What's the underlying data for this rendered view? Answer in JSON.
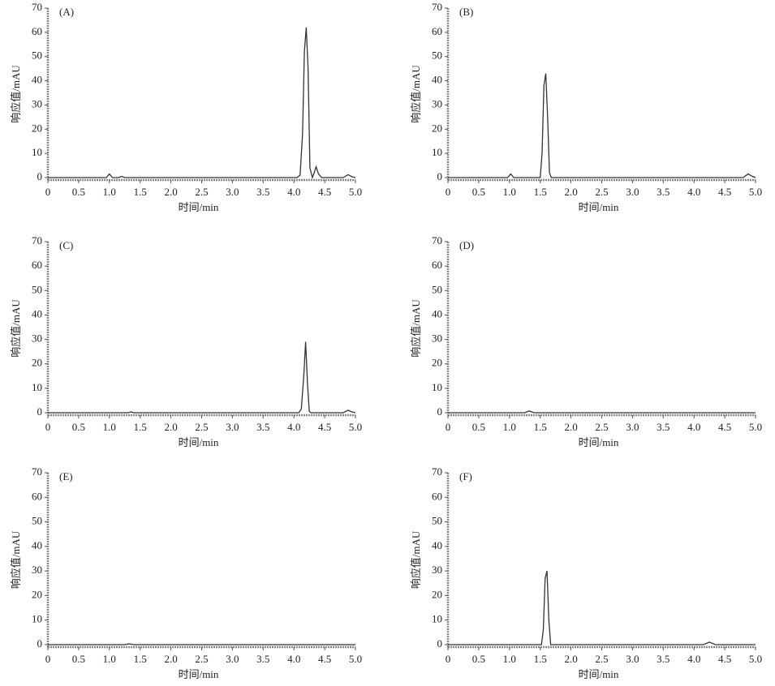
{
  "chart_data": [
    {
      "type": "line",
      "annotation": "(A)",
      "xlabel": "时间/min",
      "ylabel": "响应值/mAU",
      "x": [
        0,
        0.95,
        1.0,
        1.05,
        1.15,
        1.2,
        1.25,
        4.05,
        4.1,
        4.14,
        4.17,
        4.2,
        4.23,
        4.26,
        4.3,
        4.33,
        4.36,
        4.4,
        4.45,
        4.8,
        4.88,
        4.95,
        5.0
      ],
      "series": [
        {
          "color": "#333333",
          "values": [
            0,
            0,
            1.5,
            0,
            0,
            0.5,
            0,
            0,
            1,
            18,
            52,
            62,
            45,
            4,
            0,
            2,
            4.5,
            1.5,
            0,
            0,
            1.2,
            0.3,
            0
          ]
        }
      ],
      "xlim": [
        0,
        5
      ],
      "ylim": [
        -1,
        70
      ],
      "xticks": [
        0,
        0.5,
        {
          "value": 1,
          "label": "1.0"
        },
        1.5,
        {
          "value": 2,
          "label": "2.0"
        },
        2.5,
        {
          "value": 3,
          "label": "3.0"
        },
        3.5,
        {
          "value": 4,
          "label": "4.0"
        },
        4.5,
        {
          "value": 5,
          "label": "5.0"
        }
      ],
      "yticks": [
        0,
        10,
        20,
        30,
        40,
        50,
        60,
        70
      ]
    },
    {
      "type": "line",
      "annotation": "(B)",
      "xlabel": "时间/min",
      "ylabel": "响应值/mAU",
      "x": [
        0,
        0.97,
        1.02,
        1.07,
        1.5,
        1.53,
        1.56,
        1.59,
        1.62,
        1.65,
        1.68,
        4.8,
        4.88,
        4.95,
        5.0
      ],
      "series": [
        {
          "color": "#333333",
          "values": [
            0,
            0,
            1.5,
            0,
            0,
            10,
            38,
            43,
            25,
            2,
            0,
            0,
            1.5,
            0.5,
            0
          ]
        }
      ],
      "xlim": [
        0,
        5
      ],
      "ylim": [
        -1,
        70
      ],
      "xticks": [
        0,
        0.5,
        {
          "value": 1,
          "label": "1.0"
        },
        1.5,
        {
          "value": 2,
          "label": "2.0"
        },
        2.5,
        {
          "value": 3,
          "label": "3.0"
        },
        3.5,
        {
          "value": 4,
          "label": "4.0"
        },
        4.5,
        {
          "value": 5,
          "label": "5.0"
        }
      ],
      "yticks": [
        0,
        10,
        20,
        30,
        40,
        50,
        60,
        70
      ]
    },
    {
      "type": "line",
      "annotation": "(C)",
      "xlabel": "时间/min",
      "ylabel": "响应值/mAU",
      "x": [
        0,
        1.3,
        1.35,
        1.4,
        4.08,
        4.12,
        4.16,
        4.19,
        4.22,
        4.25,
        4.28,
        4.8,
        4.88,
        4.95,
        5.0
      ],
      "series": [
        {
          "color": "#333333",
          "values": [
            0,
            0,
            0.3,
            0,
            0,
            1.5,
            15,
            29,
            12,
            0.5,
            0,
            0,
            1,
            0.3,
            0
          ]
        }
      ],
      "xlim": [
        0,
        5
      ],
      "ylim": [
        -1,
        70
      ],
      "xticks": [
        0,
        0.5,
        {
          "value": 1,
          "label": "1.0"
        },
        1.5,
        {
          "value": 2,
          "label": "2.0"
        },
        2.5,
        {
          "value": 3,
          "label": "3.0"
        },
        3.5,
        {
          "value": 4,
          "label": "4.0"
        },
        4.5,
        {
          "value": 5,
          "label": "5.0"
        }
      ],
      "yticks": [
        0,
        10,
        20,
        30,
        40,
        50,
        60,
        70
      ]
    },
    {
      "type": "line",
      "annotation": "(D)",
      "xlabel": "时间/min",
      "ylabel": "响应值/mAU",
      "x": [
        0,
        1.25,
        1.32,
        1.4,
        5.0
      ],
      "series": [
        {
          "color": "#333333",
          "values": [
            0,
            0,
            0.7,
            0,
            0
          ]
        }
      ],
      "xlim": [
        0,
        5
      ],
      "ylim": [
        -1,
        70
      ],
      "xticks": [
        0,
        0.5,
        {
          "value": 1,
          "label": "1.0"
        },
        1.5,
        {
          "value": 2,
          "label": "2.0"
        },
        2.5,
        {
          "value": 3,
          "label": "3.0"
        },
        3.5,
        {
          "value": 4,
          "label": "4.0"
        },
        4.5,
        {
          "value": 5,
          "label": "5.0"
        }
      ],
      "yticks": [
        0,
        10,
        20,
        30,
        40,
        50,
        60,
        70
      ]
    },
    {
      "type": "line",
      "annotation": "(E)",
      "xlabel": "时间/min",
      "ylabel": "响应值/mAU",
      "x": [
        0,
        1.25,
        1.32,
        1.4,
        5.0
      ],
      "series": [
        {
          "color": "#333333",
          "values": [
            0,
            0,
            0.3,
            0,
            0
          ]
        }
      ],
      "xlim": [
        0,
        5
      ],
      "ylim": [
        -1,
        70
      ],
      "xticks": [
        0,
        0.5,
        {
          "value": 1,
          "label": "1.0"
        },
        1.5,
        {
          "value": 2,
          "label": "2.0"
        },
        2.5,
        {
          "value": 3,
          "label": "3.0"
        },
        3.5,
        {
          "value": 4,
          "label": "4.0"
        },
        4.5,
        {
          "value": 5,
          "label": "5.0"
        }
      ],
      "yticks": [
        0,
        10,
        20,
        30,
        40,
        50,
        60,
        70
      ]
    },
    {
      "type": "line",
      "annotation": "(F)",
      "xlabel": "时间/min",
      "ylabel": "响应值/mAU",
      "x": [
        0,
        1.52,
        1.55,
        1.58,
        1.61,
        1.64,
        1.67,
        4.15,
        4.25,
        4.35,
        5.0
      ],
      "series": [
        {
          "color": "#333333",
          "values": [
            0,
            0,
            6,
            27,
            30,
            10,
            0,
            0,
            1,
            0,
            0
          ]
        }
      ],
      "xlim": [
        0,
        5
      ],
      "ylim": [
        -1,
        70
      ],
      "xticks": [
        0,
        0.5,
        {
          "value": 1,
          "label": "1.0"
        },
        1.5,
        {
          "value": 2,
          "label": "2.0"
        },
        2.5,
        {
          "value": 3,
          "label": "3.0"
        },
        3.5,
        {
          "value": 4,
          "label": "4.0"
        },
        4.5,
        {
          "value": 5,
          "label": "5.0"
        }
      ],
      "yticks": [
        0,
        10,
        20,
        30,
        40,
        50,
        60,
        70
      ]
    }
  ]
}
